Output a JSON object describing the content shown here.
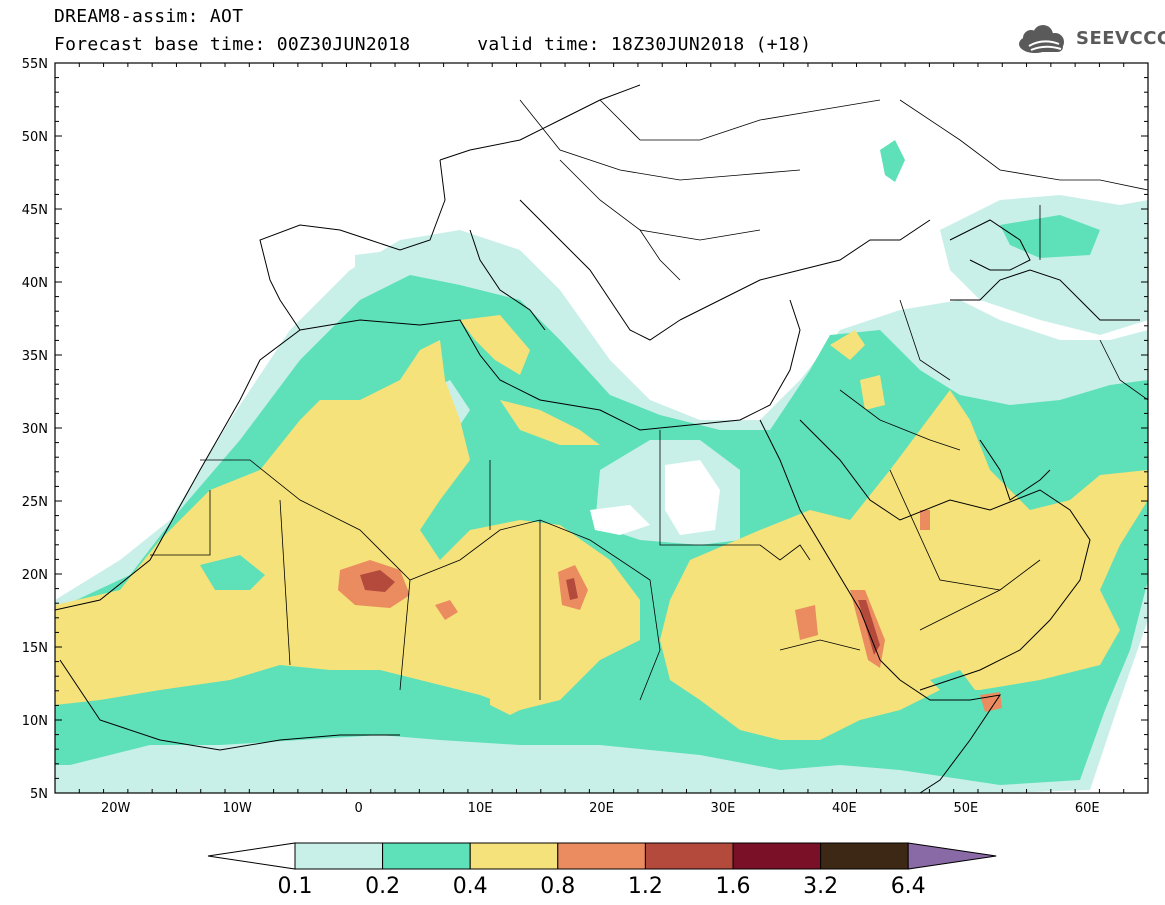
{
  "header": {
    "line1": "DREAM8-assim: AOT",
    "base_label": "Forecast base time: 00Z30JUN2018",
    "valid_label": "valid time: 18Z30JUN2018 (+18)"
  },
  "logo": {
    "text": "SEEVCCC",
    "icon": "cloud-logo-icon"
  },
  "map": {
    "lon_range": [
      -25,
      65
    ],
    "lat_range": [
      5,
      55
    ],
    "lon_ticks": [
      {
        "value": -20,
        "label": "20W"
      },
      {
        "value": -10,
        "label": "10W"
      },
      {
        "value": 0,
        "label": "0"
      },
      {
        "value": 10,
        "label": "10E"
      },
      {
        "value": 20,
        "label": "20E"
      },
      {
        "value": 30,
        "label": "30E"
      },
      {
        "value": 40,
        "label": "40E"
      },
      {
        "value": 50,
        "label": "50E"
      },
      {
        "value": 60,
        "label": "60E"
      }
    ],
    "lat_ticks": [
      {
        "value": 55,
        "label": "55N"
      },
      {
        "value": 50,
        "label": "50N"
      },
      {
        "value": 45,
        "label": "45N"
      },
      {
        "value": 40,
        "label": "40N"
      },
      {
        "value": 35,
        "label": "35N"
      },
      {
        "value": 30,
        "label": "30N"
      },
      {
        "value": 25,
        "label": "25N"
      },
      {
        "value": 20,
        "label": "20N"
      },
      {
        "value": 15,
        "label": "15N"
      },
      {
        "value": 10,
        "label": "10N"
      },
      {
        "value": 5,
        "label": "5N"
      }
    ]
  },
  "colorbar": {
    "labels": [
      "0.1",
      "0.2",
      "0.4",
      "0.8",
      "1.2",
      "1.6",
      "3.2",
      "6.4"
    ],
    "colors": [
      "#ffffff",
      "#c8f0e8",
      "#5ee0b8",
      "#f5e27a",
      "#eb8c60",
      "#b44a3c",
      "#7a0f28",
      "#3c2814",
      "#8a6aa6"
    ]
  }
}
